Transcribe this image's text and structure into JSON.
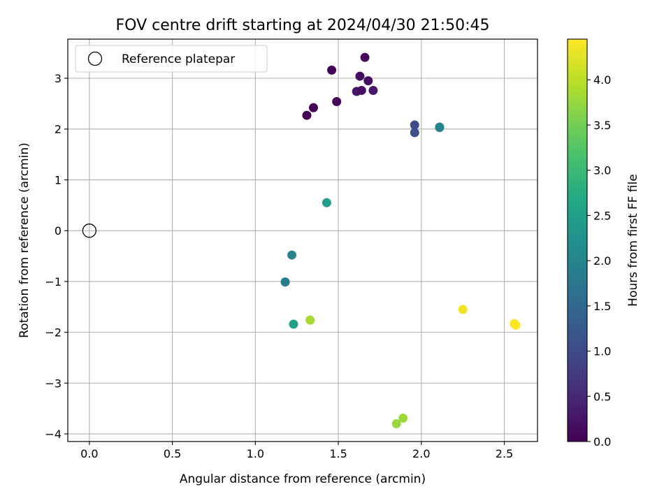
{
  "chart_data": {
    "type": "scatter",
    "title": "FOV centre drift starting at 2024/04/30 21:50:45",
    "xlabel": "Angular distance from reference (arcmin)",
    "ylabel": "Rotation from reference (arcmin)",
    "xlim": [
      -0.13,
      2.7
    ],
    "ylim": [
      -4.15,
      3.77
    ],
    "xticks": [
      {
        "value": 0.0,
        "label": "0.0"
      },
      {
        "value": 0.5,
        "label": "0.5"
      },
      {
        "value": 1.0,
        "label": "1.0"
      },
      {
        "value": 1.5,
        "label": "1.5"
      },
      {
        "value": 2.0,
        "label": "2.0"
      },
      {
        "value": 2.5,
        "label": "2.5"
      }
    ],
    "yticks": [
      {
        "value": -4,
        "label": "−4"
      },
      {
        "value": -3,
        "label": "−3"
      },
      {
        "value": -2,
        "label": "−2"
      },
      {
        "value": -1,
        "label": "−1"
      },
      {
        "value": 0,
        "label": "0"
      },
      {
        "value": 1,
        "label": "1"
      },
      {
        "value": 2,
        "label": "2"
      },
      {
        "value": 3,
        "label": "3"
      }
    ],
    "grid": true,
    "legend": {
      "placement": "top-left",
      "entries": [
        "Reference platepar"
      ]
    },
    "reference_point": {
      "x": 0.0,
      "y": 0.0
    },
    "colorbar": {
      "label": "Hours from first FF file",
      "colormap": "viridis",
      "range": [
        0.0,
        4.45
      ],
      "ticks": [
        {
          "value": 0.0,
          "label": "0.0"
        },
        {
          "value": 0.5,
          "label": "0.5"
        },
        {
          "value": 1.0,
          "label": "1.0"
        },
        {
          "value": 1.5,
          "label": "1.5"
        },
        {
          "value": 2.0,
          "label": "2.0"
        },
        {
          "value": 2.5,
          "label": "2.5"
        },
        {
          "value": 3.0,
          "label": "3.0"
        },
        {
          "value": 3.5,
          "label": "3.5"
        },
        {
          "value": 4.0,
          "label": "4.0"
        }
      ]
    },
    "points": [
      {
        "x": 1.66,
        "y": 3.41,
        "hours": 0.12
      },
      {
        "x": 1.46,
        "y": 3.16,
        "hours": 0.05
      },
      {
        "x": 1.63,
        "y": 3.04,
        "hours": 0.15
      },
      {
        "x": 1.68,
        "y": 2.95,
        "hours": 0.18
      },
      {
        "x": 1.61,
        "y": 2.74,
        "hours": 0.25
      },
      {
        "x": 1.64,
        "y": 2.76,
        "hours": 0.2
      },
      {
        "x": 1.71,
        "y": 2.76,
        "hours": 0.28
      },
      {
        "x": 1.49,
        "y": 2.54,
        "hours": 0.08
      },
      {
        "x": 1.35,
        "y": 2.42,
        "hours": 0.02
      },
      {
        "x": 1.31,
        "y": 2.27,
        "hours": 0.0
      },
      {
        "x": 1.96,
        "y": 2.08,
        "hours": 1.0
      },
      {
        "x": 1.96,
        "y": 1.93,
        "hours": 1.05
      },
      {
        "x": 2.11,
        "y": 2.03,
        "hours": 1.85
      },
      {
        "x": 2.11,
        "y": 2.04,
        "hours": 2.0
      },
      {
        "x": 1.43,
        "y": 0.55,
        "hours": 2.45
      },
      {
        "x": 1.22,
        "y": -0.48,
        "hours": 1.95
      },
      {
        "x": 1.18,
        "y": -1.01,
        "hours": 1.85
      },
      {
        "x": 1.23,
        "y": -1.84,
        "hours": 2.5
      },
      {
        "x": 1.33,
        "y": -1.76,
        "hours": 3.7
      },
      {
        "x": 1.33,
        "y": -1.76,
        "hours": 3.85
      },
      {
        "x": 2.25,
        "y": -1.55,
        "hours": 4.35
      },
      {
        "x": 2.56,
        "y": -1.83,
        "hours": 4.4
      },
      {
        "x": 2.57,
        "y": -1.86,
        "hours": 4.45
      },
      {
        "x": 1.89,
        "y": -3.69,
        "hours": 3.8
      },
      {
        "x": 1.85,
        "y": -3.8,
        "hours": 3.75
      }
    ]
  }
}
